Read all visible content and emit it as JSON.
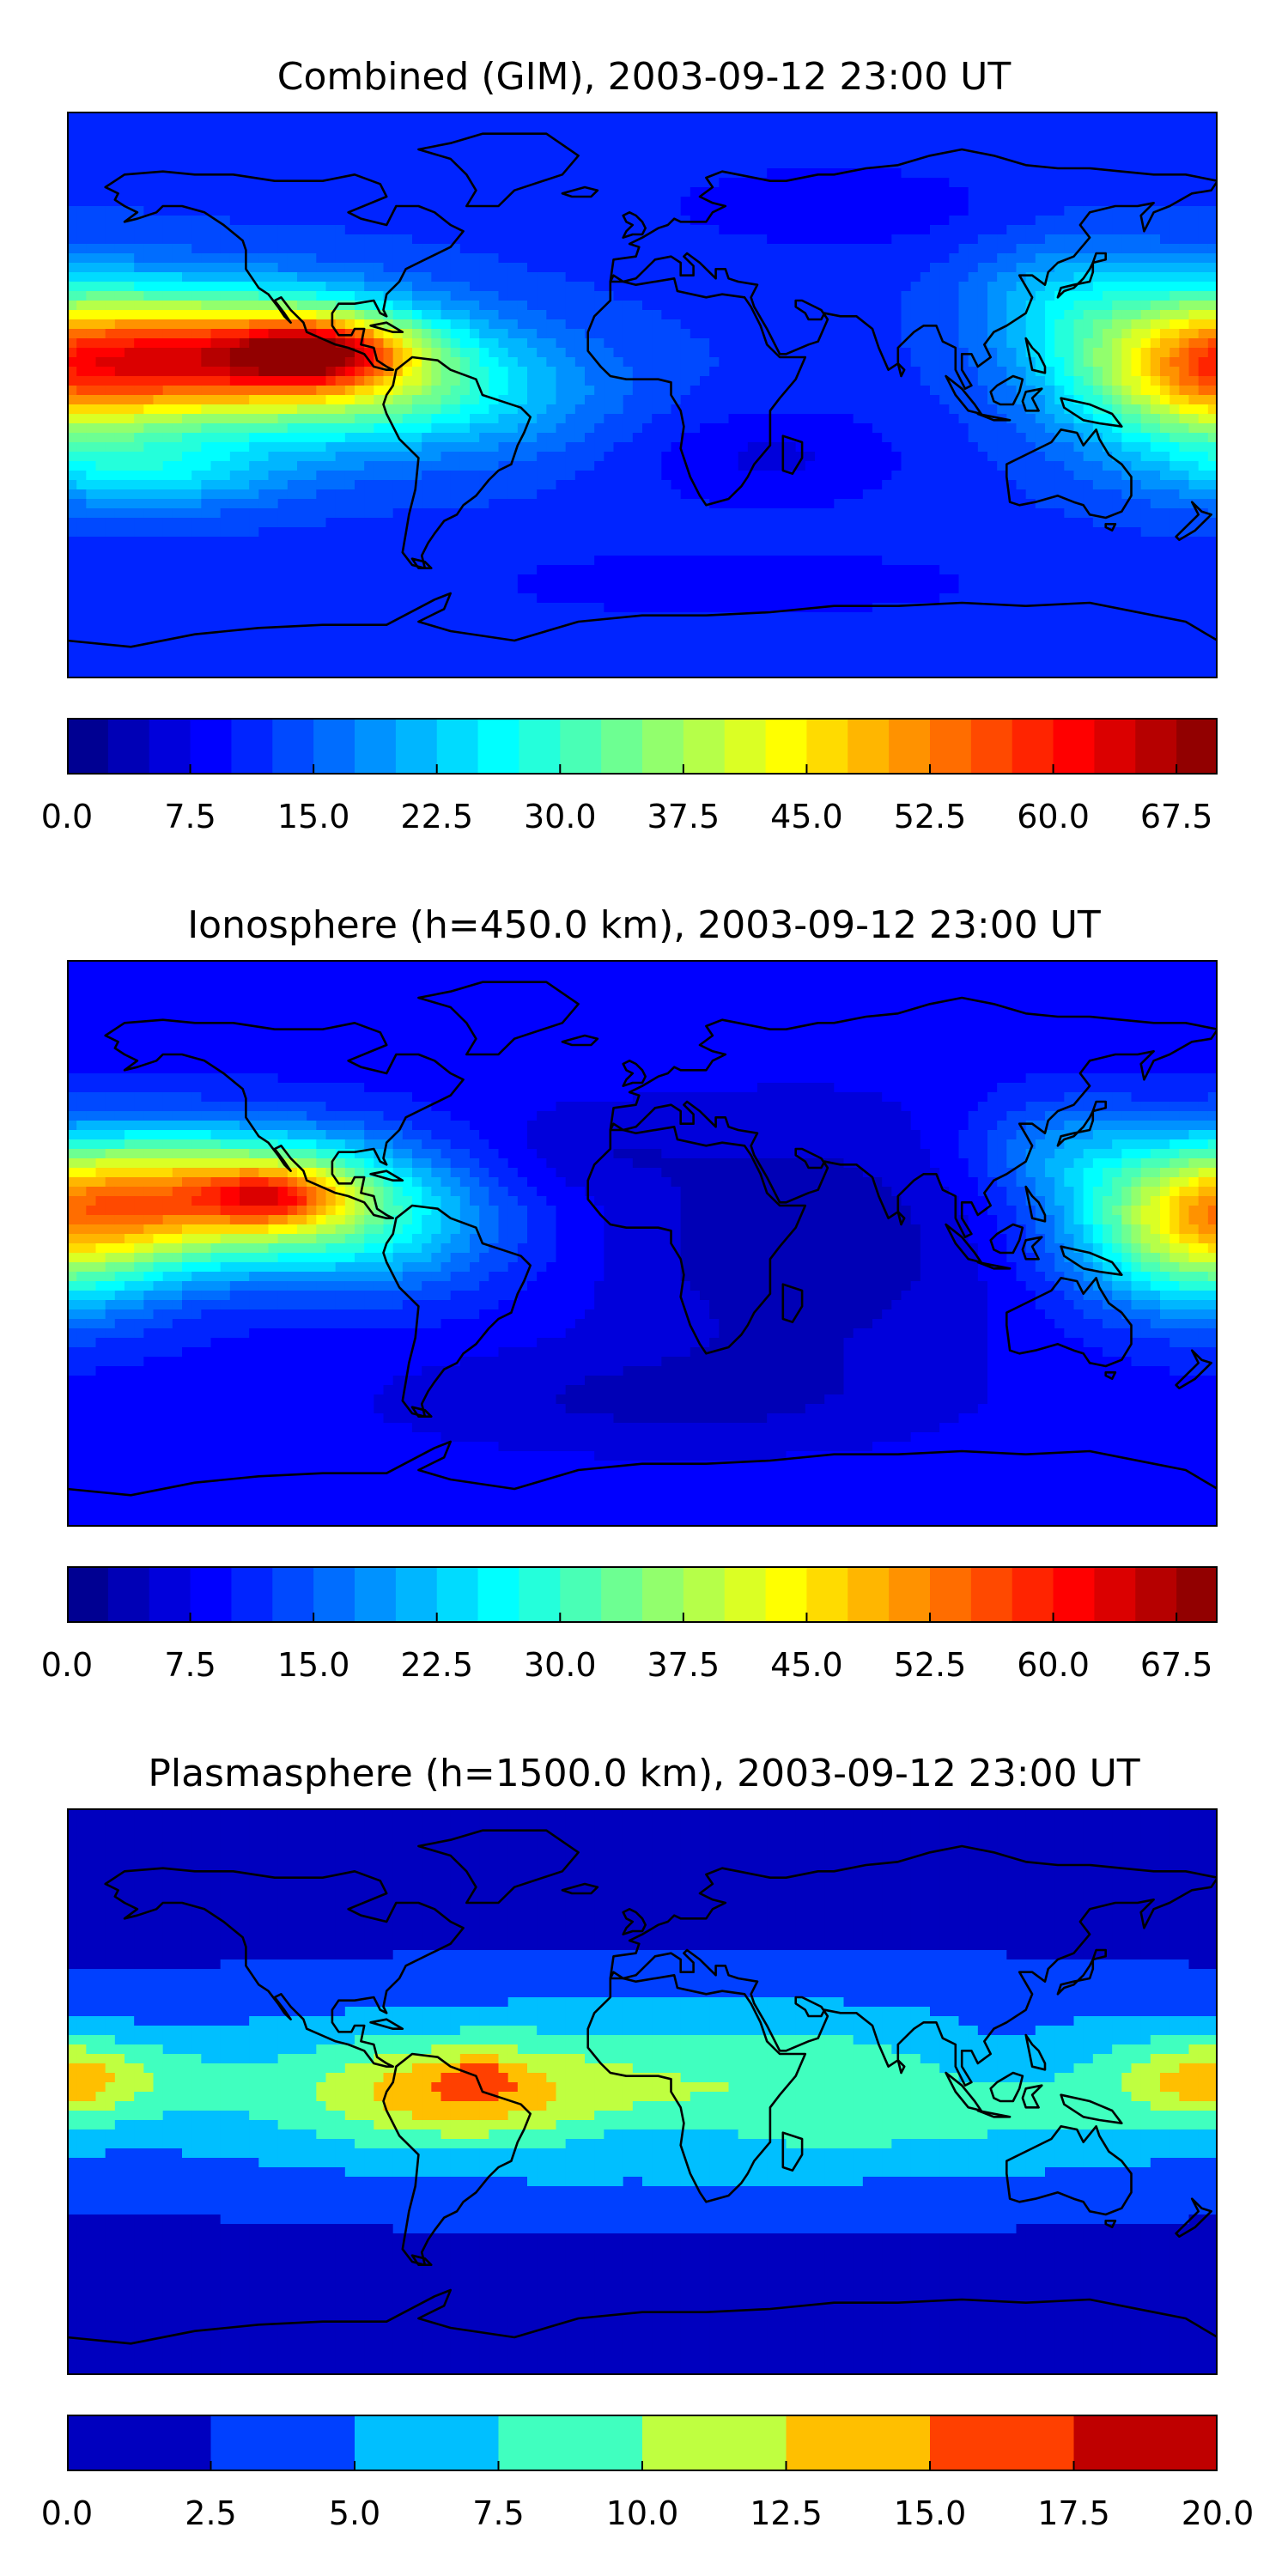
{
  "panels": [
    {
      "title": "Combined (GIM), 2003-09-12 23:00 UT",
      "colorbar": {
        "min": 0.0,
        "max": 70.0,
        "levels": 28,
        "scheme": "jet",
        "ticks": [
          "0.0",
          "7.5",
          "15.0",
          "22.5",
          "30.0",
          "37.5",
          "45.0",
          "52.5",
          "60.0",
          "67.5"
        ],
        "tick_values": [
          0.0,
          7.5,
          15.0,
          22.5,
          30.0,
          37.5,
          45.0,
          52.5,
          60.0,
          67.5
        ]
      },
      "field": {
        "background": 12,
        "blobs": [
          {
            "lon": -125,
            "lat": 12,
            "slon": 40,
            "slat": 14,
            "amp": 42
          },
          {
            "lon": -100,
            "lat": 14,
            "slon": 18,
            "slat": 7,
            "amp": 22
          },
          {
            "lon": -70,
            "lat": 0,
            "slon": 40,
            "slat": 14,
            "amp": 12
          },
          {
            "lon": -150,
            "lat": -25,
            "slon": 30,
            "slat": 8,
            "amp": 10
          },
          {
            "lon": 175,
            "lat": 8,
            "slon": 30,
            "slat": 18,
            "amp": 32
          },
          {
            "lon": 130,
            "lat": 30,
            "slon": 20,
            "slat": 14,
            "amp": 8
          },
          {
            "lon": 40,
            "lat": -20,
            "slon": 30,
            "slat": 12,
            "amp": -5
          },
          {
            "lon": 60,
            "lat": 60,
            "slon": 40,
            "slat": 10,
            "amp": -4
          },
          {
            "lon": 30,
            "lat": -60,
            "slon": 60,
            "slat": 8,
            "amp": -4
          }
        ]
      }
    },
    {
      "title": "Ionosphere  (h=450.0 km), 2003-09-12 23:00 UT",
      "colorbar": {
        "min": 0.0,
        "max": 70.0,
        "levels": 28,
        "scheme": "jet",
        "ticks": [
          "0.0",
          "7.5",
          "15.0",
          "22.5",
          "30.0",
          "37.5",
          "45.0",
          "52.5",
          "60.0",
          "67.5"
        ],
        "tick_values": [
          0.0,
          7.5,
          15.0,
          22.5,
          30.0,
          37.5,
          45.0,
          52.5,
          60.0,
          67.5
        ]
      },
      "field": {
        "background": 9,
        "blobs": [
          {
            "lon": -130,
            "lat": 15,
            "slon": 40,
            "slat": 14,
            "amp": 38
          },
          {
            "lon": -115,
            "lat": 15,
            "slon": 15,
            "slat": 6,
            "amp": 16
          },
          {
            "lon": -80,
            "lat": 0,
            "slon": 30,
            "slat": 14,
            "amp": 8
          },
          {
            "lon": 175,
            "lat": 5,
            "slon": 28,
            "slat": 18,
            "amp": 30
          },
          {
            "lon": 130,
            "lat": 30,
            "slon": 20,
            "slat": 12,
            "amp": 8
          },
          {
            "lon": 50,
            "lat": 0,
            "slon": 45,
            "slat": 30,
            "amp": -6
          },
          {
            "lon": 0,
            "lat": -50,
            "slon": 60,
            "slat": 12,
            "amp": -4
          },
          {
            "lon": -20,
            "lat": 30,
            "slon": 25,
            "slat": 10,
            "amp": -3
          }
        ]
      }
    },
    {
      "title": "Plasmasphere (h=1500.0 km), 2003-09-12 23:00 UT",
      "colorbar": {
        "min": 0.0,
        "max": 20.0,
        "levels": 8,
        "scheme": "jet",
        "ticks": [
          "0.0",
          "2.5",
          "5.0",
          "7.5",
          "10.0",
          "12.5",
          "15.0",
          "17.5",
          "20.0"
        ],
        "tick_values": [
          0.0,
          2.5,
          5.0,
          7.5,
          10.0,
          12.5,
          15.0,
          17.5,
          20.0
        ]
      },
      "field": {
        "background": 1.5,
        "blobs": [
          {
            "lon": 20,
            "lat": 0,
            "slon": 160,
            "slat": 22,
            "amp": 8.5
          },
          {
            "lon": -60,
            "lat": 0,
            "slon": 28,
            "slat": 10,
            "amp": 6
          },
          {
            "lon": -50,
            "lat": 5,
            "slon": 8,
            "slat": 4,
            "amp": 3
          },
          {
            "lon": -175,
            "lat": 5,
            "slon": 25,
            "slat": 10,
            "amp": 4
          },
          {
            "lon": 178,
            "lat": 3,
            "slon": 18,
            "slat": 8,
            "amp": 4
          },
          {
            "lon": 110,
            "lat": 12,
            "slon": 20,
            "slat": 10,
            "amp": -2
          },
          {
            "lon": 5,
            "lat": -15,
            "slon": 22,
            "slat": 6,
            "amp": -2
          }
        ]
      }
    }
  ]
}
